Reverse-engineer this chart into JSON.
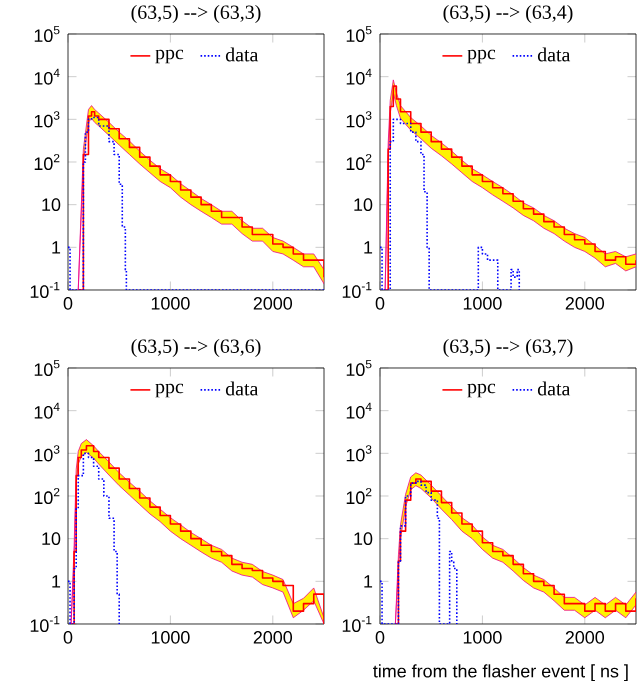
{
  "chart_data": [
    {
      "type": "step",
      "title": "(63,5) --> (63,3)",
      "log": "y",
      "legend": "top",
      "xlim": [
        0,
        2500
      ],
      "ylim": [
        0.1,
        100000
      ],
      "xticks": [
        0,
        1000,
        2000
      ],
      "yticks": [
        {
          "value": 0.1,
          "label": "10$^{-1}$"
        },
        1,
        10,
        {
          "value": 100,
          "label": "10$^{2}$"
        },
        {
          "value": 1000,
          "label": "10$^{3}$"
        },
        {
          "value": 10000,
          "label": "10$^{4}$"
        },
        {
          "value": 100000,
          "label": "10$^{5}$"
        }
      ],
      "series": [
        {
          "name": "ppc",
          "color": "#ff0000",
          "line_style": "solid",
          "x": [
            100,
            150,
            200,
            230,
            260,
            300,
            400,
            500,
            600,
            700,
            800,
            900,
            1000,
            1100,
            1200,
            1300,
            1400,
            1500,
            1600,
            1700,
            1800,
            1900,
            2000,
            2100,
            2200,
            2300,
            2400,
            2500
          ],
          "values": [
            0.1,
            150,
            1200,
            1500,
            1200,
            1000,
            600,
            350,
            220,
            130,
            80,
            50,
            35,
            22,
            15,
            10,
            7,
            5,
            5,
            3,
            2,
            2,
            1.2,
            1,
            0.7,
            0.5,
            0.5,
            0.2
          ],
          "upper": [
            0.1,
            200,
            1700,
            2100,
            1700,
            1400,
            850,
            500,
            310,
            180,
            110,
            70,
            50,
            31,
            21,
            14,
            10,
            7,
            7,
            4.2,
            2.8,
            2.8,
            1.7,
            1.4,
            1,
            0.7,
            0.7,
            0.3
          ],
          "lower": [
            0.1,
            100,
            850,
            1050,
            850,
            700,
            420,
            250,
            150,
            90,
            56,
            35,
            25,
            15,
            10,
            7,
            5,
            3.5,
            3.5,
            2.1,
            1.4,
            1.4,
            0.8,
            0.7,
            0.5,
            0.35,
            0.35,
            0.14
          ]
        },
        {
          "name": "data",
          "color": "#0000ff",
          "line_style": "dotted",
          "x": [
            0,
            20,
            140,
            150,
            170,
            200,
            230,
            300,
            400,
            450,
            500,
            530,
            560,
            570,
            2500
          ],
          "values": [
            1,
            0.1,
            0.1,
            100,
            500,
            1000,
            1100,
            700,
            300,
            150,
            30,
            3,
            0.3,
            0.1,
            0.1
          ]
        }
      ]
    },
    {
      "type": "step",
      "title": "(63,5) --> (63,4)",
      "log": "y",
      "legend": "top",
      "xlim": [
        0,
        2500
      ],
      "ylim": [
        0.1,
        100000
      ],
      "xticks": [
        0,
        1000,
        2000
      ],
      "yticks": [
        {
          "value": 0.1,
          "label": "10$^{-1}$"
        },
        1,
        10,
        {
          "value": 100,
          "label": "10$^{2}$"
        },
        {
          "value": 1000,
          "label": "10$^{3}$"
        },
        {
          "value": 10000,
          "label": "10$^{4}$"
        },
        {
          "value": 100000,
          "label": "10$^{5}$"
        }
      ],
      "series": [
        {
          "name": "ppc",
          "color": "#ff0000",
          "line_style": "solid",
          "x": [
            50,
            80,
            100,
            130,
            160,
            200,
            300,
            400,
            500,
            600,
            700,
            800,
            900,
            1000,
            1100,
            1200,
            1300,
            1400,
            1500,
            1600,
            1700,
            1800,
            1900,
            2000,
            2100,
            2200,
            2300,
            2400,
            2500
          ],
          "values": [
            0.1,
            200,
            2000,
            6000,
            3000,
            1500,
            800,
            500,
            300,
            200,
            130,
            80,
            50,
            35,
            25,
            18,
            12,
            8,
            6,
            4,
            3,
            2,
            1.5,
            1.2,
            0.8,
            0.5,
            0.6,
            0.4,
            0.5
          ],
          "upper": [
            0.1,
            280,
            2800,
            8400,
            4200,
            2100,
            1100,
            700,
            420,
            280,
            180,
            110,
            70,
            50,
            35,
            25,
            17,
            11,
            8.4,
            5.6,
            4.2,
            2.8,
            2.1,
            1.7,
            1.1,
            0.7,
            0.8,
            0.6,
            0.7
          ],
          "lower": [
            0.1,
            140,
            1400,
            4200,
            2100,
            1050,
            560,
            350,
            210,
            140,
            90,
            56,
            35,
            25,
            17,
            12,
            8.4,
            5.6,
            4.2,
            2.8,
            2.1,
            1.4,
            1,
            0.8,
            0.56,
            0.35,
            0.42,
            0.28,
            0.35
          ]
        },
        {
          "name": "data",
          "color": "#0000ff",
          "line_style": "dotted",
          "x": [
            0,
            20,
            80,
            100,
            130,
            200,
            300,
            350,
            400,
            430,
            460,
            480,
            940,
            960,
            1000,
            1050,
            1100,
            1150,
            1250,
            1280,
            1300,
            1340,
            1360
          ],
          "values": [
            1,
            0.1,
            0.1,
            300,
            1000,
            800,
            500,
            300,
            150,
            20,
            1,
            0.1,
            0.1,
            1,
            0.7,
            0.5,
            0.5,
            0.1,
            0.1,
            0.3,
            0.2,
            0.3,
            0.1
          ]
        }
      ]
    },
    {
      "type": "step",
      "title": "(63,5) --> (63,6)",
      "log": "y",
      "legend": "top",
      "xlim": [
        0,
        2500
      ],
      "ylim": [
        0.1,
        100000
      ],
      "xticks": [
        0,
        1000,
        2000
      ],
      "yticks": [
        {
          "value": 0.1,
          "label": "10$^{-1}$"
        },
        1,
        10,
        {
          "value": 100,
          "label": "10$^{2}$"
        },
        {
          "value": 1000,
          "label": "10$^{3}$"
        },
        {
          "value": 10000,
          "label": "10$^{4}$"
        },
        {
          "value": 100000,
          "label": "10$^{5}$"
        }
      ],
      "series": [
        {
          "name": "ppc",
          "color": "#ff0000",
          "line_style": "solid",
          "x": [
            30,
            60,
            80,
            100,
            130,
            180,
            250,
            300,
            400,
            500,
            600,
            700,
            800,
            900,
            1000,
            1100,
            1200,
            1300,
            1400,
            1500,
            1600,
            1700,
            1800,
            1900,
            2000,
            2100,
            2200,
            2300,
            2400,
            2500
          ],
          "values": [
            0.1,
            5,
            300,
            800,
            1200,
            1500,
            1100,
            800,
            450,
            250,
            150,
            90,
            55,
            35,
            22,
            15,
            10,
            7,
            5,
            4,
            2.5,
            2,
            1.8,
            1.2,
            1,
            0.8,
            0.2,
            0.3,
            0.5,
            0.1
          ],
          "upper": [
            0.1,
            7,
            420,
            1100,
            1700,
            2100,
            1500,
            1100,
            630,
            350,
            210,
            130,
            77,
            49,
            31,
            21,
            14,
            10,
            7,
            5.6,
            3.5,
            2.8,
            2.5,
            1.7,
            1.4,
            1.1,
            0.3,
            0.4,
            0.7,
            0.14
          ],
          "lower": [
            0.1,
            3.5,
            210,
            560,
            840,
            1050,
            770,
            560,
            310,
            175,
            105,
            63,
            38,
            25,
            15,
            10,
            7,
            4.9,
            3.5,
            2.8,
            1.75,
            1.4,
            1.26,
            0.84,
            0.7,
            0.56,
            0.14,
            0.21,
            0.35,
            0.1
          ]
        },
        {
          "name": "data",
          "color": "#0000ff",
          "line_style": "dotted",
          "x": [
            0,
            20,
            40,
            60,
            80,
            100,
            150,
            200,
            250,
            300,
            350,
            400,
            450,
            480,
            500
          ],
          "values": [
            1,
            0.1,
            0.1,
            2,
            50,
            300,
            1000,
            800,
            500,
            250,
            100,
            30,
            5,
            0.5,
            0.1
          ]
        }
      ]
    },
    {
      "type": "step",
      "title": "(63,5) --> (63,7)",
      "xlabel": "time from the flasher event [ ns ]",
      "log": "y",
      "legend": "top",
      "xlim": [
        0,
        2500
      ],
      "ylim": [
        0.1,
        100000
      ],
      "xticks": [
        0,
        1000,
        2000
      ],
      "yticks": [
        {
          "value": 0.1,
          "label": "10$^{-1}$"
        },
        1,
        10,
        {
          "value": 100,
          "label": "10$^{2}$"
        },
        {
          "value": 1000,
          "label": "10$^{3}$"
        },
        {
          "value": 10000,
          "label": "10$^{4}$"
        },
        {
          "value": 100000,
          "label": "10$^{5}$"
        }
      ],
      "series": [
        {
          "name": "ppc",
          "color": "#ff0000",
          "line_style": "solid",
          "x": [
            150,
            180,
            200,
            250,
            300,
            350,
            400,
            500,
            600,
            700,
            800,
            900,
            1000,
            1100,
            1200,
            1300,
            1400,
            1500,
            1600,
            1700,
            1800,
            1900,
            2000,
            2100,
            2200,
            2300,
            2400,
            2500
          ],
          "values": [
            0.1,
            3,
            15,
            80,
            200,
            250,
            220,
            130,
            70,
            40,
            22,
            15,
            8,
            5,
            4,
            2.5,
            1.5,
            1,
            0.8,
            0.5,
            0.3,
            0.3,
            0.2,
            0.3,
            0.2,
            0.3,
            0.2,
            0.4
          ],
          "upper": [
            0.1,
            4.2,
            21,
            110,
            280,
            350,
            310,
            180,
            100,
            56,
            31,
            21,
            11,
            7,
            5.6,
            3.5,
            2.1,
            1.4,
            1.1,
            0.7,
            0.42,
            0.42,
            0.28,
            0.42,
            0.28,
            0.42,
            0.28,
            0.56
          ],
          "lower": [
            0.1,
            2.1,
            10,
            56,
            140,
            175,
            150,
            90,
            49,
            28,
            15,
            10,
            5.6,
            3.5,
            2.8,
            1.75,
            1.05,
            0.7,
            0.56,
            0.35,
            0.21,
            0.21,
            0.14,
            0.21,
            0.14,
            0.21,
            0.14,
            0.28
          ]
        },
        {
          "name": "data",
          "color": "#0000ff",
          "line_style": "dotted",
          "x": [
            0,
            20,
            150,
            180,
            200,
            250,
            300,
            350,
            400,
            450,
            500,
            560,
            580,
            600,
            650,
            680,
            700,
            720,
            750,
            760
          ],
          "values": [
            1,
            0.1,
            0.1,
            3,
            20,
            100,
            200,
            220,
            180,
            120,
            80,
            30,
            0.1,
            0.1,
            0.1,
            5,
            3,
            2,
            0.1,
            0.1
          ]
        }
      ]
    }
  ]
}
